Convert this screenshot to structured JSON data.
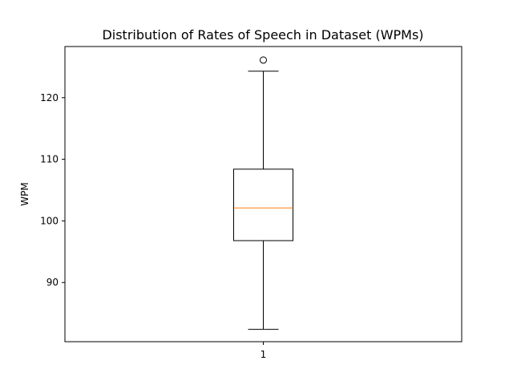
{
  "chart_data": {
    "type": "box",
    "title": "Distribution of Rates of Speech in Dataset (WPMs)",
    "xlabel": "",
    "ylabel": "WPM",
    "categories": [
      "1"
    ],
    "ylim": [
      80.4,
      128.3
    ],
    "yticks": [
      90,
      100,
      110,
      120
    ],
    "ytick_labels": [
      "90",
      "100",
      "110",
      "120"
    ],
    "grid": false,
    "boxes": [
      {
        "label": "1",
        "whisker_low": 82.4,
        "q1": 96.8,
        "median": 102.1,
        "q3": 108.4,
        "whisker_high": 124.3,
        "outliers": [
          126.1
        ]
      }
    ],
    "colors": {
      "box": "#000000",
      "median": "#ff7f0e",
      "axes": "#000000"
    }
  }
}
